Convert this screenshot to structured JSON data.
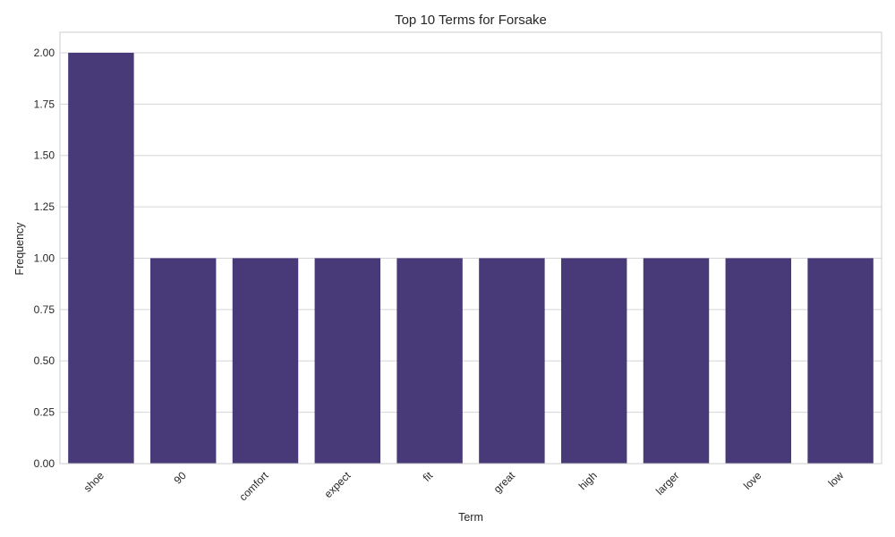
{
  "chart_data": {
    "type": "bar",
    "title": "Top 10 Terms for Forsake",
    "xlabel": "Term",
    "ylabel": "Frequency",
    "categories": [
      "shoe",
      "90",
      "comfort",
      "expect",
      "fit",
      "great",
      "high",
      "larger",
      "love",
      "low"
    ],
    "values": [
      2,
      1,
      1,
      1,
      1,
      1,
      1,
      1,
      1,
      1
    ],
    "ylim": [
      0,
      2.1
    ],
    "yticks": [
      "0.00",
      "0.25",
      "0.50",
      "0.75",
      "1.00",
      "1.25",
      "1.50",
      "1.75",
      "2.00"
    ],
    "grid": "horizontal",
    "bar_color": "#483a78"
  }
}
